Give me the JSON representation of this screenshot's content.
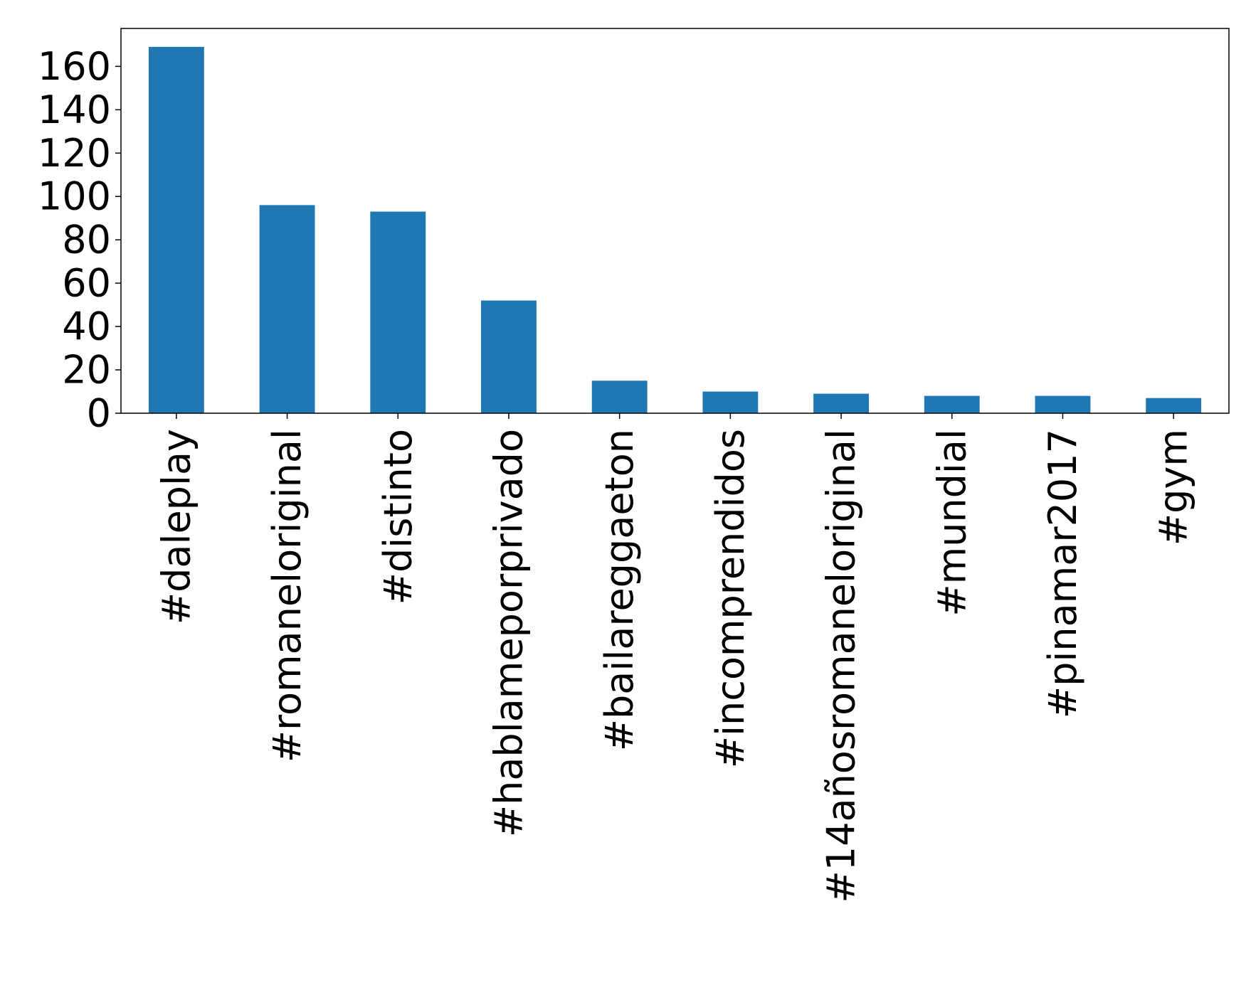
{
  "chart_data": {
    "type": "bar",
    "categories": [
      "#daleplay",
      "#romaneloriginal",
      "#distinto",
      "#hablameporprivado",
      "#bailareggaeton",
      "#incomprendidos",
      "#14añosromaneloriginal",
      "#mundial",
      "#pinamar2017",
      "#gym"
    ],
    "values": [
      169,
      96,
      93,
      52,
      15,
      10,
      9,
      8,
      8,
      7
    ],
    "yticks": [
      0,
      20,
      40,
      60,
      80,
      100,
      120,
      140,
      160
    ],
    "ylim": [
      0,
      177.5
    ],
    "title": "",
    "xlabel": "",
    "ylabel": "",
    "grid": false,
    "bar_color": "#1f77b4"
  }
}
